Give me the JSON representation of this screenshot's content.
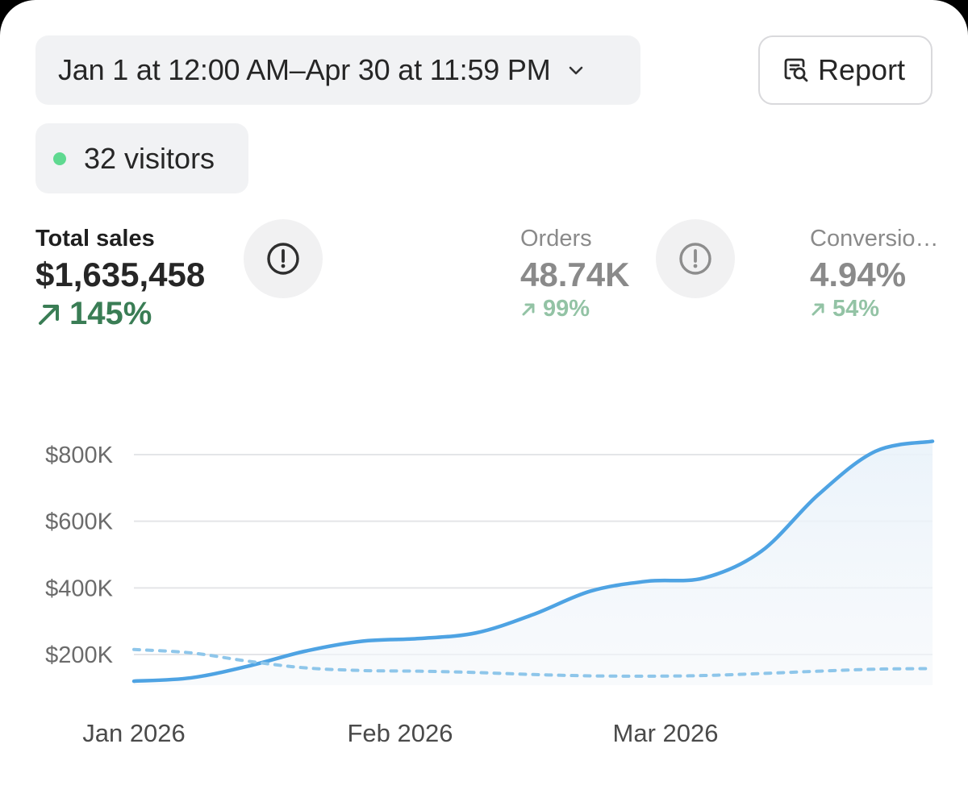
{
  "header": {
    "date_range": "Jan 1 at 12:00 AM–Apr 30 at 11:59 PM",
    "report_label": "Report"
  },
  "visitors": {
    "text": "32 visitors",
    "dot_color": "#5fd990"
  },
  "metrics": {
    "total_sales": {
      "label": "Total sales",
      "value": "$1,635,458",
      "delta": "145%",
      "delta_color": "#3a7d55"
    },
    "orders": {
      "label": "Orders",
      "value": "48.74K",
      "delta": "99%"
    },
    "conversion": {
      "label": "Conversio…",
      "value": "4.94%",
      "delta": "54%"
    }
  },
  "icons": {
    "date_dropdown": "chevron-down-icon",
    "report": "report-search-icon",
    "info": "exclamation-circle-icon",
    "trend": "arrow-up-right-icon"
  },
  "chart_data": {
    "type": "line",
    "y_tick_labels": [
      "$800K",
      "$600K",
      "$400K",
      "$200K"
    ],
    "y_ticks": [
      800000,
      600000,
      400000,
      200000
    ],
    "x_tick_labels": [
      "Jan 2026",
      "Feb 2026",
      "Mar 2026"
    ],
    "ylim": [
      0,
      850000
    ],
    "grid": true,
    "series": [
      {
        "style": "solid",
        "color": "#4ea3e3",
        "fill": true,
        "values": [
          120000,
          130000,
          165000,
          210000,
          240000,
          248000,
          265000,
          320000,
          390000,
          420000,
          430000,
          510000,
          680000,
          810000,
          840000
        ]
      },
      {
        "style": "dashed",
        "color": "#8ec6ea",
        "fill": false,
        "values": [
          215000,
          205000,
          180000,
          160000,
          152000,
          150000,
          146000,
          140000,
          136000,
          135000,
          137000,
          143000,
          150000,
          156000,
          158000
        ]
      }
    ]
  }
}
